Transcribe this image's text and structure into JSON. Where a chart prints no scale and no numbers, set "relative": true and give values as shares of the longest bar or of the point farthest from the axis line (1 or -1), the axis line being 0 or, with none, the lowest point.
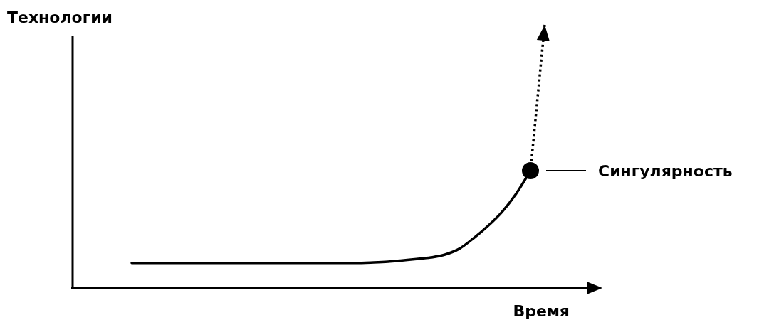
{
  "chart_data": {
    "type": "line",
    "relative": true,
    "ylabel": "Технологии",
    "xlabel": "Время",
    "categories": [
      null,
      null,
      null,
      null,
      null,
      null,
      null,
      null,
      null,
      null,
      null,
      null,
      null,
      null,
      null,
      null,
      null,
      null,
      null,
      null,
      null,
      null,
      null,
      null,
      null,
      null,
      null,
      null,
      null,
      null
    ],
    "series": [
      {
        "color": "#000000",
        "line_style": "solid",
        "values": [
          0.095,
          0.095,
          0.095,
          0.095,
          0.095,
          0.095,
          0.095,
          0.095,
          0.095,
          0.095,
          0.095,
          0.095,
          0.095,
          0.095,
          0.095,
          0.095,
          0.095,
          0.097,
          0.1,
          0.105,
          0.11,
          0.116,
          0.127,
          0.149,
          0.189,
          0.235,
          0.289,
          0.359,
          0.446,
          null
        ]
      },
      {
        "color": "#000000",
        "line_style": "dotted",
        "values": [
          null,
          null,
          null,
          null,
          null,
          null,
          null,
          null,
          null,
          null,
          null,
          null,
          null,
          null,
          null,
          null,
          null,
          null,
          null,
          null,
          null,
          null,
          null,
          null,
          null,
          null,
          null,
          null,
          0.446,
          1
        ]
      }
    ],
    "annotations": [
      "Сингулярность"
    ]
  }
}
